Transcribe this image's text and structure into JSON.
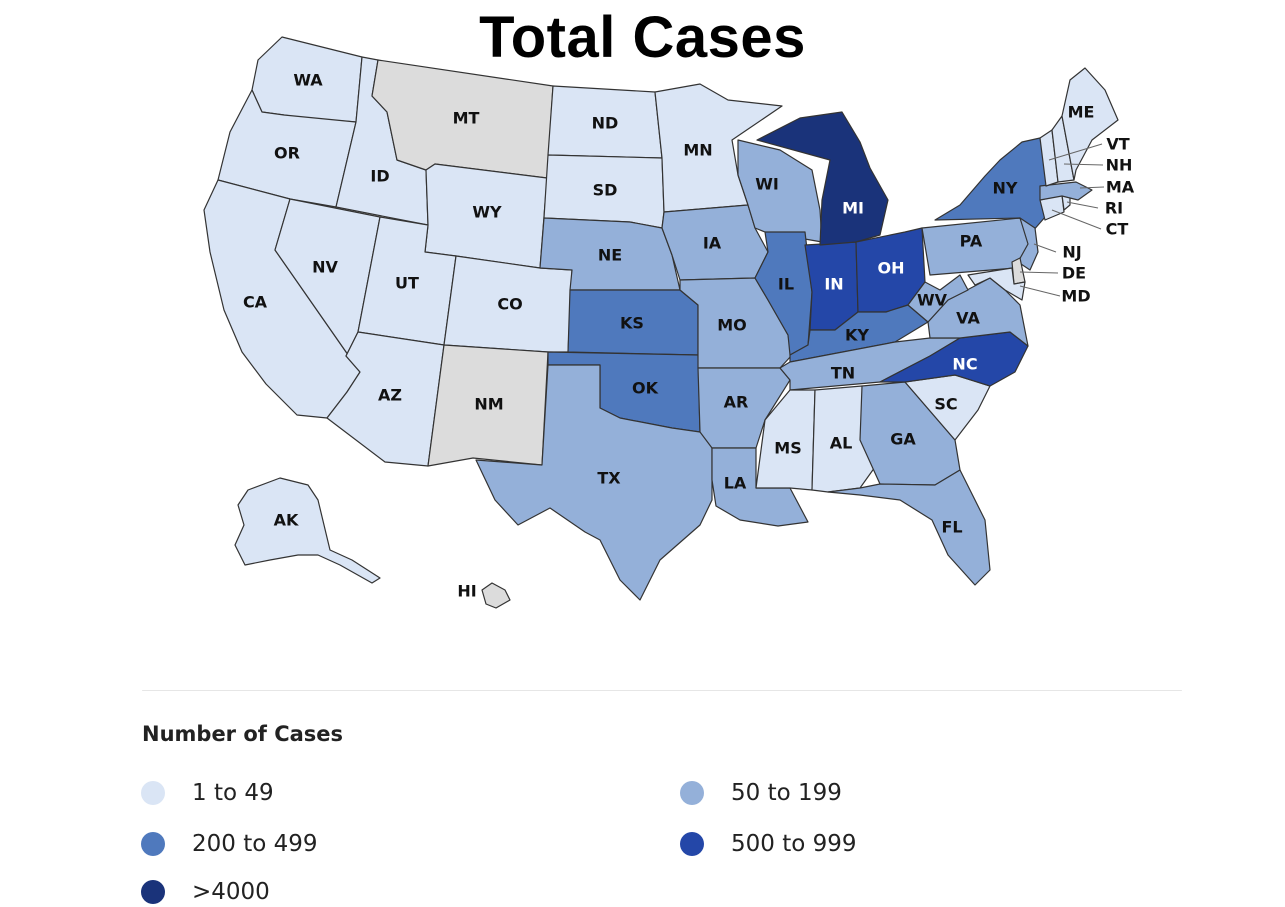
{
  "title": "Total Cases",
  "legend": {
    "title": "Number of Cases",
    "items": [
      {
        "label": "1 to 49",
        "color": "#dae5f5"
      },
      {
        "label": "50 to 199",
        "color": "#94b0d9"
      },
      {
        "label": "200 to 499",
        "color": "#4f79bd"
      },
      {
        "label": "500 to 999",
        "color": "#2447a8"
      },
      {
        "label": ">4000",
        "color": "#1a337a"
      }
    ],
    "no_data_color": "#dcdcdc"
  },
  "states": [
    {
      "code": "WA",
      "bin": 0
    },
    {
      "code": "OR",
      "bin": 0
    },
    {
      "code": "CA",
      "bin": 0
    },
    {
      "code": "ID",
      "bin": 0
    },
    {
      "code": "NV",
      "bin": 0
    },
    {
      "code": "MT",
      "bin": null
    },
    {
      "code": "WY",
      "bin": 0
    },
    {
      "code": "UT",
      "bin": 0
    },
    {
      "code": "AZ",
      "bin": 0
    },
    {
      "code": "CO",
      "bin": 0
    },
    {
      "code": "NM",
      "bin": null
    },
    {
      "code": "ND",
      "bin": 0
    },
    {
      "code": "SD",
      "bin": 0
    },
    {
      "code": "NE",
      "bin": 1
    },
    {
      "code": "KS",
      "bin": 2
    },
    {
      "code": "OK",
      "bin": 2
    },
    {
      "code": "TX",
      "bin": 1
    },
    {
      "code": "MN",
      "bin": 0
    },
    {
      "code": "IA",
      "bin": 1
    },
    {
      "code": "MO",
      "bin": 1
    },
    {
      "code": "AR",
      "bin": 1
    },
    {
      "code": "LA",
      "bin": 1
    },
    {
      "code": "WI",
      "bin": 1
    },
    {
      "code": "IL",
      "bin": 2
    },
    {
      "code": "IN",
      "bin": 3
    },
    {
      "code": "MI",
      "bin": 4
    },
    {
      "code": "OH",
      "bin": 3
    },
    {
      "code": "KY",
      "bin": 2
    },
    {
      "code": "TN",
      "bin": 1
    },
    {
      "code": "MS",
      "bin": 0
    },
    {
      "code": "AL",
      "bin": 0
    },
    {
      "code": "GA",
      "bin": 1
    },
    {
      "code": "FL",
      "bin": 1
    },
    {
      "code": "SC",
      "bin": 0
    },
    {
      "code": "NC",
      "bin": 3
    },
    {
      "code": "VA",
      "bin": 1
    },
    {
      "code": "WV",
      "bin": 1
    },
    {
      "code": "PA",
      "bin": 1
    },
    {
      "code": "NY",
      "bin": 2
    },
    {
      "code": "NJ",
      "bin": 1
    },
    {
      "code": "DE",
      "bin": null
    },
    {
      "code": "MD",
      "bin": 0
    },
    {
      "code": "CT",
      "bin": 0
    },
    {
      "code": "RI",
      "bin": 0
    },
    {
      "code": "MA",
      "bin": 1
    },
    {
      "code": "VT",
      "bin": 0
    },
    {
      "code": "NH",
      "bin": 0
    },
    {
      "code": "ME",
      "bin": 0
    },
    {
      "code": "AK",
      "bin": 0
    },
    {
      "code": "HI",
      "bin": null
    }
  ]
}
